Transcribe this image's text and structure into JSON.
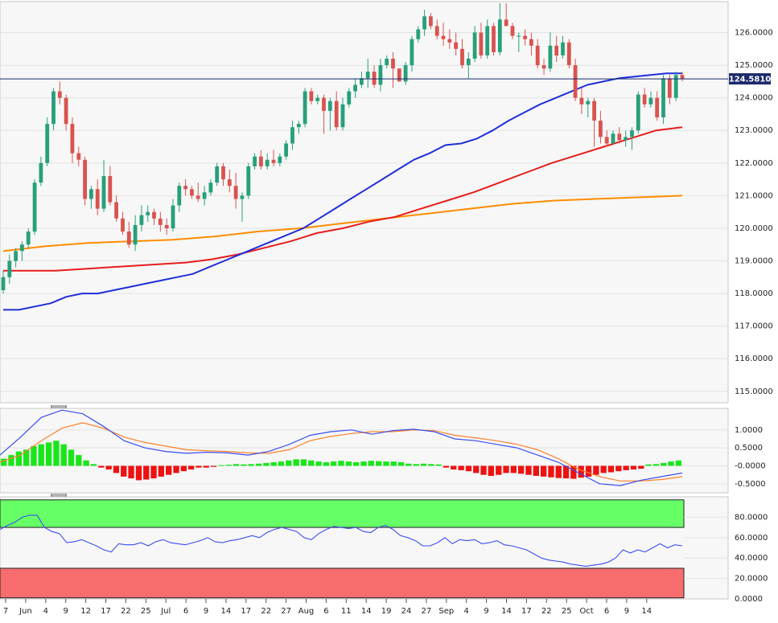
{
  "chart_data": [
    {
      "type": "candlestick",
      "title": "",
      "colors": {
        "up": "#27a07a",
        "down": "#d9534f",
        "sma50": "#1f2fd8",
        "sma100": "#e81c1c",
        "sma200": "#ff8c00",
        "last_price_line": "#1b2a6b"
      },
      "y_ticks": [
        "126.0000",
        "125.0000",
        "124.0000",
        "123.0000",
        "122.0000",
        "121.0000",
        "120.0000",
        "119.0000",
        "118.0000",
        "117.0000",
        "116.0000",
        "115.0000"
      ],
      "ylim": [
        114.65,
        126.95
      ],
      "last_price": 124.581,
      "last_price_label": "124.5810",
      "candles": [
        [
          118.1,
          118.7,
          118.0,
          118.5
        ],
        [
          118.5,
          119.2,
          118.3,
          119.0
        ],
        [
          119.0,
          119.4,
          118.8,
          119.3
        ],
        [
          119.3,
          119.6,
          119.0,
          119.5
        ],
        [
          119.5,
          120.0,
          119.4,
          119.9
        ],
        [
          119.9,
          121.5,
          119.8,
          121.4
        ],
        [
          121.4,
          122.2,
          121.3,
          122.0
        ],
        [
          122.0,
          123.4,
          121.9,
          123.2
        ],
        [
          123.2,
          124.3,
          123.0,
          124.2
        ],
        [
          124.2,
          124.5,
          123.8,
          124.0
        ],
        [
          124.0,
          124.1,
          123.0,
          123.2
        ],
        [
          123.2,
          123.4,
          122.0,
          122.3
        ],
        [
          122.3,
          122.5,
          121.9,
          122.1
        ],
        [
          122.1,
          122.2,
          120.7,
          120.9
        ],
        [
          120.9,
          121.3,
          120.6,
          121.2
        ],
        [
          121.2,
          121.5,
          120.4,
          120.6
        ],
        [
          120.6,
          122.1,
          120.5,
          121.6
        ],
        [
          121.6,
          121.9,
          120.7,
          120.8
        ],
        [
          120.8,
          121.0,
          120.2,
          120.3
        ],
        [
          120.3,
          120.5,
          119.8,
          119.9
        ],
        [
          119.9,
          120.2,
          119.4,
          119.5
        ],
        [
          119.5,
          120.4,
          119.3,
          120.1
        ],
        [
          120.1,
          120.7,
          119.9,
          120.4
        ],
        [
          120.4,
          120.7,
          120.2,
          120.5
        ],
        [
          120.5,
          120.6,
          120.1,
          120.3
        ],
        [
          120.3,
          120.5,
          119.9,
          120.1
        ],
        [
          120.1,
          120.3,
          119.8,
          120.0
        ],
        [
          120.0,
          120.9,
          119.9,
          120.7
        ],
        [
          120.7,
          121.4,
          120.5,
          121.3
        ],
        [
          121.3,
          121.5,
          121.0,
          121.2
        ],
        [
          121.2,
          121.3,
          120.9,
          121.0
        ],
        [
          121.0,
          121.4,
          120.8,
          120.9
        ],
        [
          120.9,
          121.3,
          120.7,
          121.1
        ],
        [
          121.1,
          121.5,
          121.0,
          121.4
        ],
        [
          121.4,
          122.0,
          121.3,
          121.9
        ],
        [
          121.9,
          122.0,
          121.3,
          121.5
        ],
        [
          121.5,
          121.8,
          121.1,
          121.3
        ],
        [
          121.3,
          121.7,
          120.6,
          120.9
        ],
        [
          120.9,
          121.1,
          120.2,
          121.0
        ],
        [
          121.0,
          122.0,
          120.9,
          121.9
        ],
        [
          121.9,
          122.3,
          121.8,
          122.2
        ],
        [
          122.2,
          122.4,
          121.8,
          121.9
        ],
        [
          121.9,
          122.3,
          121.8,
          122.1
        ],
        [
          122.1,
          122.4,
          121.9,
          122.0
        ],
        [
          122.0,
          122.3,
          121.9,
          122.2
        ],
        [
          122.2,
          122.7,
          122.1,
          122.6
        ],
        [
          122.6,
          123.3,
          122.4,
          123.1
        ],
        [
          123.1,
          123.3,
          122.9,
          123.2
        ],
        [
          123.2,
          124.3,
          123.1,
          124.2
        ],
        [
          124.2,
          124.3,
          123.8,
          123.9
        ],
        [
          123.9,
          124.1,
          123.8,
          124.0
        ],
        [
          124.0,
          124.1,
          122.9,
          123.6
        ],
        [
          123.6,
          124.0,
          123.0,
          123.9
        ],
        [
          123.9,
          124.2,
          123.0,
          123.1
        ],
        [
          123.1,
          124.0,
          123.0,
          123.8
        ],
        [
          123.8,
          124.3,
          123.7,
          124.2
        ],
        [
          124.2,
          124.6,
          124.0,
          124.4
        ],
        [
          124.4,
          124.8,
          124.3,
          124.6
        ],
        [
          124.6,
          125.2,
          124.3,
          124.8
        ],
        [
          124.8,
          125.0,
          124.3,
          124.4
        ],
        [
          124.4,
          125.2,
          124.2,
          125.0
        ],
        [
          125.0,
          125.3,
          124.9,
          125.2
        ],
        [
          125.2,
          125.4,
          124.3,
          124.9
        ],
        [
          124.9,
          124.9,
          124.5,
          124.5
        ],
        [
          124.5,
          125.1,
          124.4,
          125.0
        ],
        [
          125.0,
          125.9,
          124.8,
          125.8
        ],
        [
          125.8,
          126.2,
          125.7,
          126.1
        ],
        [
          126.1,
          126.7,
          125.9,
          126.5
        ],
        [
          126.5,
          126.6,
          126.1,
          126.2
        ],
        [
          126.2,
          126.4,
          125.8,
          125.9
        ],
        [
          125.9,
          126.3,
          125.6,
          125.8
        ],
        [
          125.8,
          126.1,
          125.5,
          125.7
        ],
        [
          125.7,
          126.0,
          125.3,
          125.5
        ],
        [
          125.5,
          125.8,
          124.9,
          125.0
        ],
        [
          125.0,
          125.4,
          124.6,
          125.2
        ],
        [
          125.2,
          126.2,
          125.1,
          126.0
        ],
        [
          126.0,
          126.3,
          125.2,
          125.3
        ],
        [
          125.3,
          126.4,
          125.2,
          126.2
        ],
        [
          126.2,
          126.3,
          125.3,
          125.4
        ],
        [
          125.4,
          126.9,
          125.3,
          126.4
        ],
        [
          126.4,
          126.9,
          126.2,
          126.2
        ],
        [
          126.2,
          126.3,
          125.8,
          125.9
        ],
        [
          125.9,
          126.0,
          125.4,
          125.9
        ],
        [
          125.9,
          126.1,
          125.6,
          125.8
        ],
        [
          125.8,
          126.0,
          125.3,
          125.6
        ],
        [
          125.6,
          125.8,
          124.9,
          125.0
        ],
        [
          125.0,
          125.2,
          124.7,
          124.9
        ],
        [
          124.9,
          126.0,
          124.8,
          125.6
        ],
        [
          125.6,
          125.9,
          125.1,
          125.3
        ],
        [
          125.3,
          125.9,
          125.2,
          125.7
        ],
        [
          125.7,
          125.8,
          124.9,
          125.0
        ],
        [
          125.0,
          125.2,
          123.9,
          124.0
        ],
        [
          124.0,
          124.3,
          123.5,
          123.8
        ],
        [
          123.8,
          124.0,
          123.4,
          123.9
        ],
        [
          123.9,
          124.0,
          122.5,
          123.3
        ],
        [
          123.3,
          123.6,
          122.6,
          122.8
        ],
        [
          122.8,
          123.0,
          122.5,
          122.6
        ],
        [
          122.6,
          123.0,
          122.6,
          122.9
        ],
        [
          122.9,
          123.1,
          122.6,
          122.7
        ],
        [
          122.7,
          123.0,
          122.5,
          122.8
        ],
        [
          122.8,
          123.1,
          122.4,
          123.0
        ],
        [
          123.0,
          124.2,
          122.9,
          124.1
        ],
        [
          124.1,
          124.3,
          123.7,
          123.8
        ],
        [
          123.8,
          124.2,
          123.7,
          124.0
        ],
        [
          124.0,
          124.2,
          123.3,
          123.4
        ],
        [
          123.4,
          124.7,
          123.2,
          124.6
        ],
        [
          124.6,
          124.7,
          123.8,
          124.0
        ],
        [
          124.0,
          124.8,
          123.9,
          124.7
        ],
        [
          124.7,
          124.8,
          124.5,
          124.581
        ]
      ],
      "sma50": [
        117.5,
        117.5,
        117.6,
        117.7,
        117.9,
        118.0,
        118.0,
        118.1,
        118.2,
        118.3,
        118.4,
        118.5,
        118.6,
        118.8,
        119.0,
        119.2,
        119.4,
        119.6,
        119.8,
        120.0,
        120.3,
        120.6,
        120.9,
        121.2,
        121.5,
        121.8,
        122.1,
        122.3,
        122.55,
        122.6,
        122.75,
        123.0,
        123.3,
        123.55,
        123.8,
        124.0,
        124.2,
        124.4,
        124.5,
        124.6,
        124.65,
        124.7,
        124.75,
        124.75
      ],
      "sma100": [
        118.7,
        118.7,
        118.7,
        118.75,
        118.8,
        118.85,
        118.9,
        118.95,
        119.05,
        119.2,
        119.4,
        119.6,
        119.85,
        120.0,
        120.2,
        120.35,
        120.6,
        120.85,
        121.1,
        121.4,
        121.7,
        122.0,
        122.25,
        122.5,
        122.75,
        123.0,
        123.1
      ],
      "sma200": [
        119.3,
        119.45,
        119.55,
        119.6,
        119.65,
        119.75,
        119.9,
        120.0,
        120.15,
        120.3,
        120.45,
        120.6,
        120.75,
        120.85,
        120.9,
        120.95,
        121.0
      ]
    },
    {
      "type": "macd",
      "y_ticks": [
        "1.0000",
        "0.5000",
        "-0.0000",
        "-0.5000"
      ],
      "ylim": [
        -0.75,
        1.6
      ],
      "colors": {
        "macd": "#3a4ef0",
        "signal": "#ff7f27",
        "hist_pos": "#19e619",
        "hist_neg": "#ee1111"
      },
      "macd": [
        0.3,
        0.8,
        1.35,
        1.55,
        1.45,
        1.1,
        0.7,
        0.5,
        0.4,
        0.35,
        0.38,
        0.36,
        0.3,
        0.4,
        0.6,
        0.85,
        0.95,
        1.0,
        0.88,
        0.98,
        1.02,
        0.95,
        0.75,
        0.7,
        0.6,
        0.5,
        0.3,
        0.1,
        -0.2,
        -0.5,
        -0.55,
        -0.4,
        -0.3,
        -0.2
      ],
      "signal": [
        0.1,
        0.3,
        0.7,
        1.05,
        1.2,
        1.05,
        0.8,
        0.65,
        0.55,
        0.45,
        0.42,
        0.4,
        0.36,
        0.35,
        0.45,
        0.7,
        0.82,
        0.9,
        0.95,
        0.95,
        1.0,
        0.98,
        0.85,
        0.78,
        0.7,
        0.6,
        0.45,
        0.2,
        -0.1,
        -0.3,
        -0.42,
        -0.42,
        -0.38,
        -0.3
      ],
      "histogram": [
        0.2,
        0.3,
        0.4,
        0.45,
        0.55,
        0.6,
        0.65,
        0.7,
        0.6,
        0.45,
        0.3,
        0.15,
        0.05,
        -0.05,
        -0.1,
        -0.2,
        -0.3,
        -0.35,
        -0.4,
        -0.38,
        -0.35,
        -0.3,
        -0.25,
        -0.2,
        -0.15,
        -0.1,
        -0.05,
        -0.05,
        -0.03,
        0.02,
        0.03,
        0.05,
        0.04,
        0.05,
        0.06,
        0.08,
        0.1,
        0.12,
        0.15,
        0.18,
        0.18,
        0.15,
        0.12,
        0.1,
        0.12,
        0.14,
        0.12,
        0.1,
        0.12,
        0.14,
        0.13,
        0.12,
        0.12,
        0.1,
        0.06,
        0.05,
        0.06,
        0.05,
        0.04,
        -0.05,
        -0.1,
        -0.12,
        -0.15,
        -0.2,
        -0.25,
        -0.28,
        -0.25,
        -0.2,
        -0.2,
        -0.22,
        -0.25,
        -0.28,
        -0.3,
        -0.32,
        -0.34,
        -0.35,
        -0.36,
        -0.33,
        -0.3,
        -0.25,
        -0.2,
        -0.18,
        -0.15,
        -0.12,
        -0.1,
        -0.08,
        0.04,
        0.05,
        0.08,
        0.12,
        0.15
      ]
    },
    {
      "type": "rsi",
      "y_ticks": [
        "80.0000",
        "60.0000",
        "40.0000",
        "20.0000",
        "0.0000"
      ],
      "ylim": [
        0,
        100
      ],
      "overbought": 70,
      "oversold": 30,
      "colors": {
        "line": "#3a4ef0",
        "overbought_fill": "#66ff66",
        "oversold_fill": "#f76c6c"
      },
      "rsi": [
        68,
        72,
        75,
        80,
        82,
        82,
        70,
        66,
        64,
        55,
        56,
        58,
        55,
        52,
        48,
        46,
        54,
        53,
        53,
        55,
        52,
        56,
        58,
        55,
        54,
        53,
        55,
        57,
        60,
        56,
        55,
        57,
        58,
        60,
        62,
        60,
        65,
        68,
        70,
        68,
        66,
        60,
        58,
        64,
        68,
        71,
        70,
        69,
        70,
        66,
        65,
        70,
        72,
        68,
        62,
        60,
        57,
        52,
        52,
        55,
        60,
        54,
        58,
        57,
        58,
        54,
        55,
        57,
        53,
        52,
        50,
        48,
        44,
        40,
        38,
        37,
        36,
        34,
        33,
        32,
        33,
        34,
        36,
        40,
        48,
        45,
        48,
        46,
        50,
        54,
        50,
        53,
        52
      ]
    },
    {
      "type": "x-axis",
      "x_ticks": [
        "7",
        "Jun",
        "4",
        "9",
        "12",
        "17",
        "22",
        "25",
        "Jul",
        "6",
        "9",
        "14",
        "17",
        "22",
        "27",
        "Aug",
        "6",
        "11",
        "14",
        "19",
        "24",
        "27",
        "Sep",
        "4",
        "9",
        "14",
        "17",
        "22",
        "25",
        "Oct",
        "6",
        "9",
        "14"
      ]
    }
  ]
}
